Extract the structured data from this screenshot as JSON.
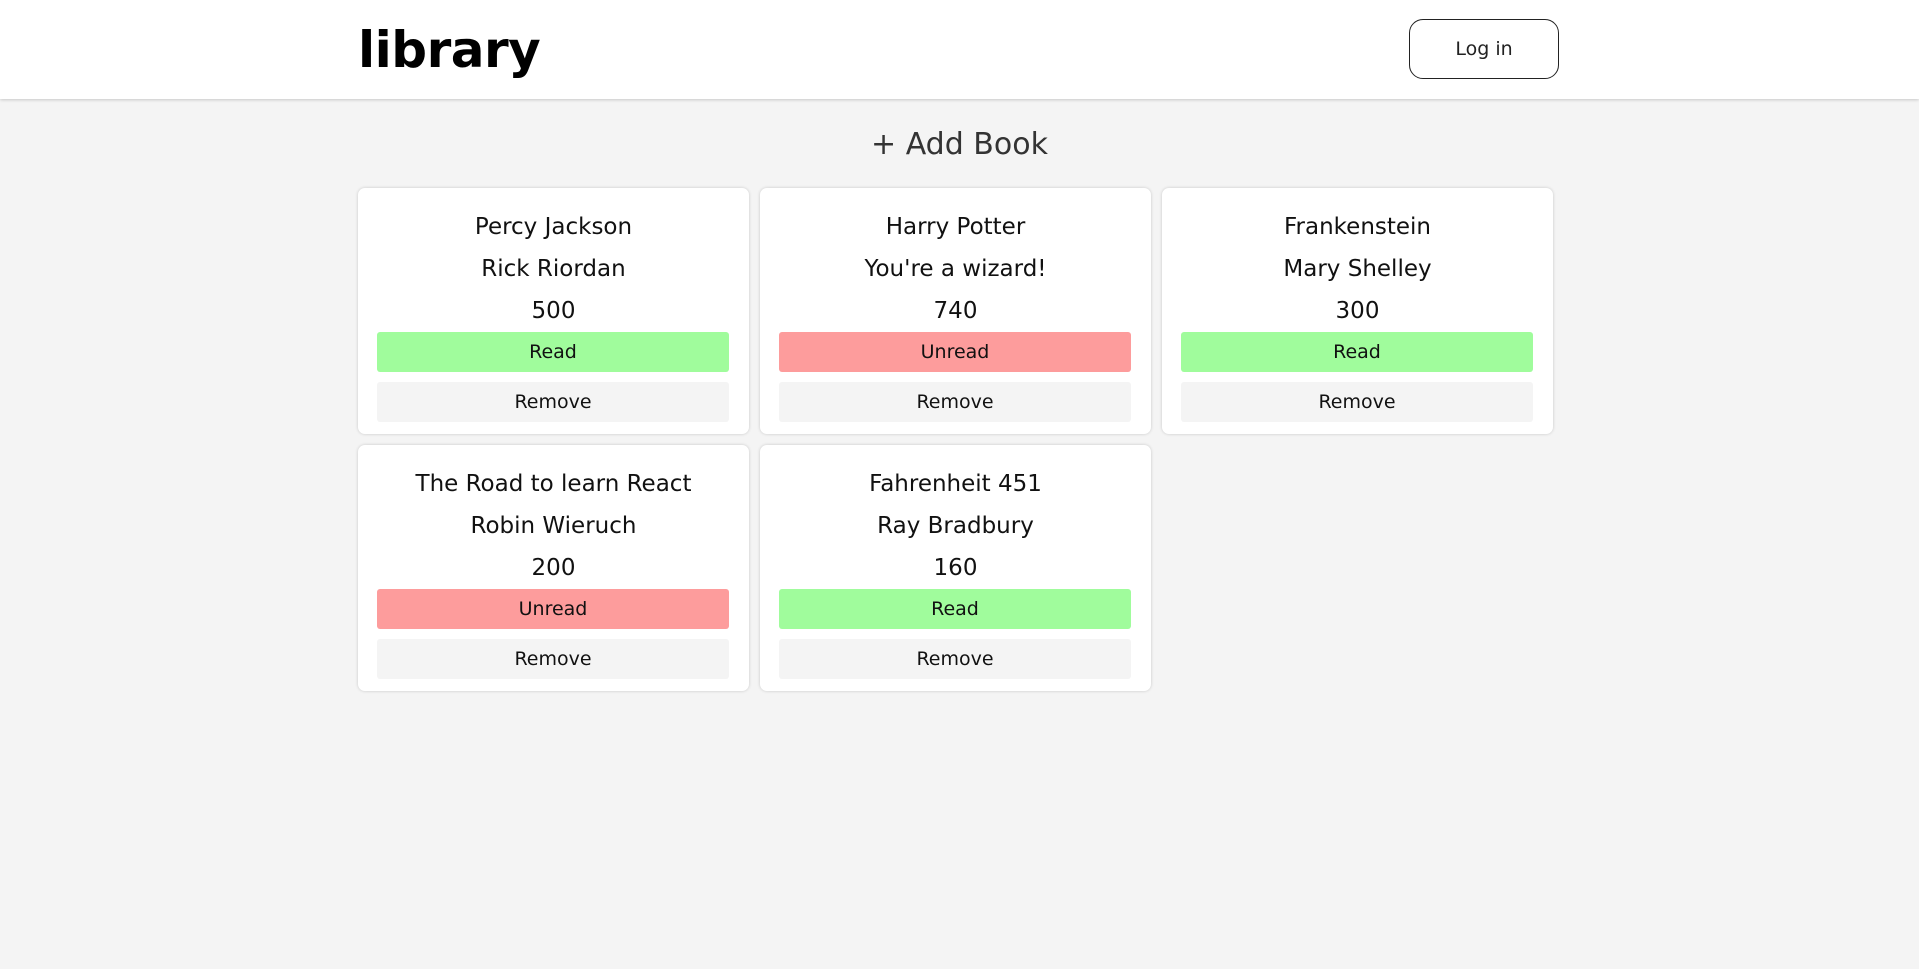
{
  "header": {
    "logo": "library",
    "login_label": "Log in"
  },
  "add_book_label": "+ Add Book",
  "status_colors": {
    "read": "#a0fc9c",
    "unread": "#fd9c9c"
  },
  "books": [
    {
      "title": "Percy Jackson",
      "author": "Rick Riordan",
      "pages": "500",
      "status": "Read",
      "remove_label": "Remove"
    },
    {
      "title": "Harry Potter",
      "author": "You're a wizard!",
      "pages": "740",
      "status": "Unread",
      "remove_label": "Remove"
    },
    {
      "title": "Frankenstein",
      "author": "Mary Shelley",
      "pages": "300",
      "status": "Read",
      "remove_label": "Remove"
    },
    {
      "title": "The Road to learn React",
      "author": "Robin Wieruch",
      "pages": "200",
      "status": "Unread",
      "remove_label": "Remove"
    },
    {
      "title": "Fahrenheit 451",
      "author": "Ray Bradbury",
      "pages": "160",
      "status": "Read",
      "remove_label": "Remove"
    }
  ]
}
